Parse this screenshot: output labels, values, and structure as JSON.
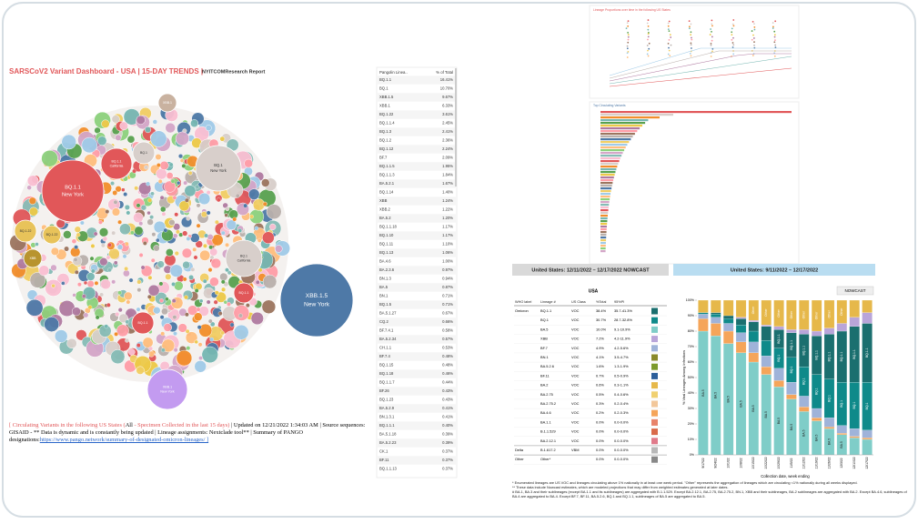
{
  "header": {
    "title": "SARSCoV2 Variant Dashboard - USA | 15-DAY TRENDS |",
    "report": "NYITCOMResearch Report"
  },
  "bubbles": [
    {
      "label": "BQ.1.1",
      "sub": "New York",
      "color": "#e15759"
    },
    {
      "label": "XBB.1.5",
      "sub": "New York",
      "color": "#4e79a7"
    },
    {
      "label": "XBB.1",
      "sub": "New York",
      "color": "#c39bf0"
    },
    {
      "label": "BQ.1",
      "sub": "New York",
      "color": "#d8cfcb"
    },
    {
      "label": "BQ.1.1",
      "sub": "California",
      "color": "#e15759"
    },
    {
      "label": "BQ.1",
      "sub": "California",
      "color": "#d8cfcb"
    },
    {
      "label": "BQ.1.1",
      "color": "#e15759"
    },
    {
      "label": "BQ.1.1",
      "color": "#e15759"
    },
    {
      "label": "BQ.1",
      "color": "#d8cfcb"
    },
    {
      "label": "XBB.1",
      "color": "#c9b2a0"
    },
    {
      "label": "BQ.1.22",
      "color": "#e8c35a"
    },
    {
      "label": "BQ.1.22",
      "color": "#e8c35a"
    },
    {
      "label": "XBB",
      "color": "#b8942e"
    }
  ],
  "footer": [
    {
      "text": "[ Circulating Variants in the following US States (",
      "color": "#e15759"
    },
    {
      "text": "All",
      "color": "#000"
    },
    {
      "text": " - Specimen Collected in the last 15 days) ",
      "color": "#e15759"
    },
    {
      "text": "| Updated on 12/21/2022 1:34:03 AM | Source sequences: GISAID - ** Data is dynamic and is constantly being updated | Lineage assignments: Nextclade tool** | Summary of PANGO designations:",
      "color": "#000"
    },
    {
      "text": "https://www.pango.network/summary-of-designated-omicron-lineages/ ]",
      "color": "#2a66c9"
    }
  ],
  "lineage_table": {
    "columns": [
      "Pangolin Linea..",
      "% of Total"
    ],
    "rows": [
      [
        "BQ.1.1",
        "16.41%"
      ],
      [
        "BQ.1",
        "10.70%"
      ],
      [
        "XBB.1.5",
        "9.67%"
      ],
      [
        "XBB.1",
        "6.33%"
      ],
      [
        "BQ.1.22",
        "3.61%"
      ],
      [
        "BQ.1.1.4",
        "2.45%"
      ],
      [
        "BQ.1.3",
        "2.41%"
      ],
      [
        "BQ.1.2",
        "2.36%"
      ],
      [
        "BQ.1.12",
        "2.24%"
      ],
      [
        "BF.7",
        "2.09%"
      ],
      [
        "BQ.1.1.5",
        "1.95%"
      ],
      [
        "BQ.1.1.3",
        "1.84%"
      ],
      [
        "BA.5.2.1",
        "1.67%"
      ],
      [
        "BQ.1.14",
        "1.40%"
      ],
      [
        "XBB",
        "1.24%"
      ],
      [
        "XBB.2",
        "1.22%"
      ],
      [
        "BA.5.2",
        "1.20%"
      ],
      [
        "BQ.1.1.18",
        "1.17%"
      ],
      [
        "BQ.1.10",
        "1.17%"
      ],
      [
        "BQ.1.11",
        "1.10%"
      ],
      [
        "BQ.1.13",
        "1.06%"
      ],
      [
        "BA.4.6",
        "1.00%"
      ],
      [
        "BA.2.3.6",
        "0.97%"
      ],
      [
        "BN.1.3",
        "0.94%"
      ],
      [
        "BA.5",
        "0.87%"
      ],
      [
        "BN.1",
        "0.71%"
      ],
      [
        "BQ.1.5",
        "0.71%"
      ],
      [
        "BA.5.1.27",
        "0.67%"
      ],
      [
        "CQ.2",
        "0.66%"
      ],
      [
        "BF.7.4.1",
        "0.58%"
      ],
      [
        "BA.5.2.34",
        "0.57%"
      ],
      [
        "CH.1.1",
        "0.53%"
      ],
      [
        "BF.7.4",
        "0.48%"
      ],
      [
        "BQ.1.15",
        "0.48%"
      ],
      [
        "BQ.1.18",
        "0.46%"
      ],
      [
        "BQ.1.1.7",
        "0.44%"
      ],
      [
        "BF.26",
        "0.43%"
      ],
      [
        "BQ.1.23",
        "0.43%"
      ],
      [
        "BA.5.2.9",
        "0.41%"
      ],
      [
        "BN.1.3.1",
        "0.41%"
      ],
      [
        "BQ.1.1.1",
        "0.40%"
      ],
      [
        "BA.5.1.18",
        "0.39%"
      ],
      [
        "BA.5.2.23",
        "0.39%"
      ],
      [
        "CK.1",
        "0.37%"
      ],
      [
        "BF.11",
        "0.37%"
      ],
      [
        "BQ.1.1.13",
        "0.37%"
      ]
    ]
  },
  "thumbnails": {
    "top_title": "Lineage Proportions over time in the following US States",
    "bar_title": "Top Circulating Variants"
  },
  "nowcast": {
    "title_left": "United States: 12/11/2022 – 12/17/2022 NOWCAST",
    "title_right": "United States: 9/11/2022 – 12/17/2022",
    "table": {
      "group": "USA",
      "columns": [
        "WHO label",
        "Lineage #",
        "US Class",
        "%Total",
        "95%PI"
      ],
      "rows": [
        {
          "who": "Omicron",
          "lineage": "BQ.1.1",
          "class": "VOC",
          "pct": "38.4%",
          "pi": "35.7-41.3%",
          "color": "#1b6f6f"
        },
        {
          "lineage": "BQ.1",
          "class": "VOC",
          "pct": "30.7%",
          "pi": "28.7-32.8%",
          "color": "#0f8a8a"
        },
        {
          "lineage": "BA.5",
          "class": "VOC",
          "pct": "10.0%",
          "pi": "9.1-10.9%",
          "color": "#7fcdc8"
        },
        {
          "lineage": "XBB",
          "class": "VOC",
          "pct": "7.2%",
          "pi": "4.2-11.9%",
          "color": "#b9a5d9"
        },
        {
          "lineage": "BF.7",
          "class": "VOC",
          "pct": "4.9%",
          "pi": "4.2-5.6%",
          "color": "#9fb3d9"
        },
        {
          "lineage": "BN.1",
          "class": "VOC",
          "pct": "4.1%",
          "pi": "3.5-4.7%",
          "color": "#8a8a2a"
        },
        {
          "lineage": "BA.5.2.6",
          "class": "VOC",
          "pct": "1.6%",
          "pi": "1.3-1.9%",
          "color": "#7c9a2c"
        },
        {
          "lineage": "BF.11",
          "class": "VOC",
          "pct": "0.7%",
          "pi": "0.5-0.9%",
          "color": "#2c5f9a"
        },
        {
          "lineage": "BA.2",
          "class": "VOC",
          "pct": "0.6%",
          "pi": "0.3-1.1%",
          "color": "#e6b84a"
        },
        {
          "lineage": "BA.2.75",
          "class": "VOC",
          "pct": "0.5%",
          "pi": "0.4-0.6%",
          "color": "#f0d070"
        },
        {
          "lineage": "BA.2.75.2",
          "class": "VOC",
          "pct": "0.3%",
          "pi": "0.2-0.4%",
          "color": "#f2c79a"
        },
        {
          "lineage": "BA.4.6",
          "class": "VOC",
          "pct": "0.2%",
          "pi": "0.2-0.3%",
          "color": "#f5a55a"
        },
        {
          "lineage": "BA.1.1",
          "class": "VOC",
          "pct": "0.0%",
          "pi": "0.0-0.0%",
          "color": "#e8836a"
        },
        {
          "lineage": "B.1.1.529",
          "class": "VOC",
          "pct": "0.0%",
          "pi": "0.0-0.0%",
          "color": "#d96a4a"
        },
        {
          "lineage": "BA.2.12.1",
          "class": "VOC",
          "pct": "0.0%",
          "pi": "0.0-0.0%",
          "color": "#e07a8a"
        },
        {
          "who": "Delta",
          "lineage": "B.1.617.2",
          "class": "VBM",
          "pct": "0.0%",
          "pi": "0.0-0.0%",
          "color": "#b8b8b8"
        },
        {
          "who": "Other",
          "lineage": "Other*",
          "pct": "0.0%",
          "pi": "0.0-0.0%",
          "color": "#888888"
        }
      ]
    },
    "chart_data": {
      "type": "bar",
      "stacked": true,
      "badge": "NOWCAST",
      "ylabel": "% Viral Lineages Among Infections",
      "xlabel": "Collection date, week ending",
      "categories": [
        "9/17/22",
        "9/24/22",
        "10/1/22",
        "10/8/22",
        "10/15/22",
        "10/22/22",
        "10/29/22",
        "11/5/22",
        "11/12/22",
        "11/19/22",
        "11/26/22",
        "12/3/22",
        "12/10/22",
        "12/17/22"
      ],
      "series": [
        {
          "name": "BA.5",
          "color": "#7fcdc8",
          "values": [
            80,
            77,
            72,
            66,
            60,
            52,
            44,
            36,
            28,
            22,
            17,
            13,
            11,
            10
          ]
        },
        {
          "name": "BA.4.6",
          "color": "#f5a55a",
          "values": [
            8,
            8,
            8,
            7,
            6,
            5,
            4,
            3,
            3,
            2,
            1,
            1,
            1,
            1
          ]
        },
        {
          "name": "BF.7",
          "color": "#9fb3d9",
          "values": [
            3,
            4,
            5,
            6,
            7,
            7,
            8,
            8,
            7,
            6,
            6,
            5,
            5,
            5
          ]
        },
        {
          "name": "BQ.1",
          "color": "#0f8a8a",
          "values": [
            1,
            2,
            3,
            5,
            7,
            10,
            13,
            16,
            19,
            22,
            25,
            28,
            30,
            31
          ]
        },
        {
          "name": "BQ.1.1",
          "color": "#1b6f6f",
          "values": [
            0,
            1,
            2,
            4,
            6,
            9,
            12,
            16,
            21,
            25,
            29,
            33,
            36,
            38
          ]
        },
        {
          "name": "XBB",
          "color": "#b9a5d9",
          "values": [
            0,
            0,
            0,
            1,
            1,
            1,
            2,
            2,
            3,
            3,
            4,
            5,
            6,
            7
          ]
        },
        {
          "name": "Other",
          "color": "#e6b84a",
          "values": [
            8,
            8,
            10,
            11,
            13,
            16,
            17,
            19,
            19,
            20,
            18,
            15,
            11,
            8
          ]
        }
      ],
      "ylim": [
        0,
        100
      ],
      "yticks": [
        {
          "value": 0,
          "label": "0%"
        },
        {
          "value": 10,
          "label": "10%"
        },
        {
          "value": 20,
          "label": "20%"
        },
        {
          "value": 30,
          "label": "30%"
        },
        {
          "value": 40,
          "label": "40%"
        },
        {
          "value": 50,
          "label": "50%"
        },
        {
          "value": 60,
          "label": "60%"
        },
        {
          "value": 70,
          "label": "70%"
        },
        {
          "value": 80,
          "label": "80%"
        },
        {
          "value": 90,
          "label": "90%"
        },
        {
          "value": 100,
          "label": "100%"
        }
      ]
    },
    "footnotes": [
      "*    Enumerated lineages are US VOC and lineages circulating above 1% nationally in at least one week period. \"Other\" represents the aggregation of lineages which are circulating <1% nationally during all weeks displayed.",
      "**   These data include Nowcast estimates, which are modeled projections that may differ from weighted estimates generated at later dates.",
      "#    BA.1, BA.3 and their sublineages (except BA.1.1 and its sublineages) are aggregated with B.1.1.529. Except BA.2.12.1, BA.2.75, BA.2.75.2, BN.1, XBB and their sublineages, BA.2 sublineages are aggregated with BA.2. Except BA.4.6, sublineages of BA.4 are aggregated to BA.4. Except BF.7, BF.11, BA.5.2.6, BQ.1 and BQ.1.1, sublineages of BA.5 are aggregated to BA.5."
    ]
  }
}
